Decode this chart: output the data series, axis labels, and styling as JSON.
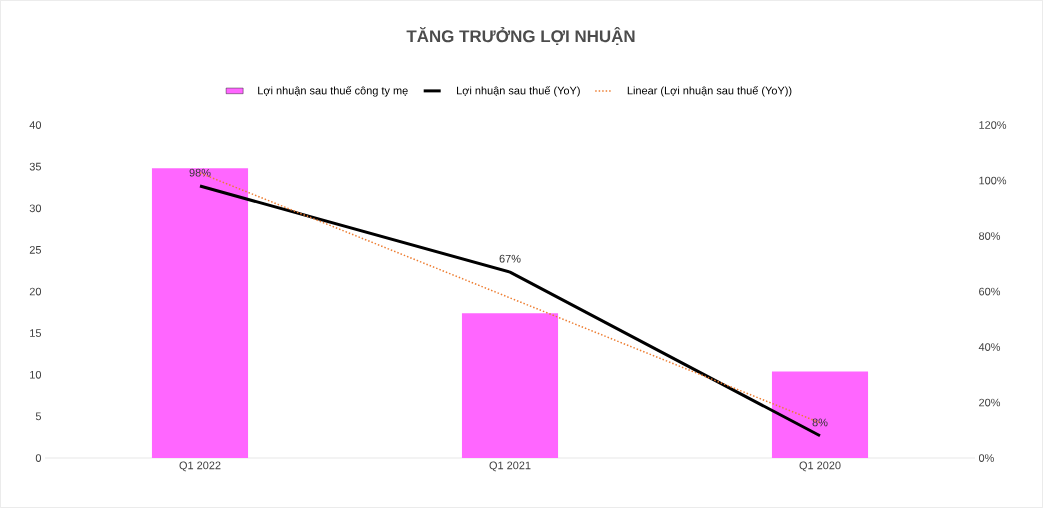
{
  "chart_data": {
    "type": "bar",
    "title": "TĂNG TRƯỞNG LỢI NHUẬN",
    "categories": [
      "Q1 2022",
      "Q1 2021",
      "Q1 2020"
    ],
    "series": [
      {
        "name": "Lợi nhuận sau thuế công ty mẹ",
        "color": "#ff66ff",
        "values": [
          34.8,
          17.4,
          10.4
        ]
      },
      {
        "name": "Lợi nhuận sau thuế (YoY)",
        "type": "line",
        "axis": "y2",
        "color": "#000000",
        "values": [
          98,
          67,
          8
        ],
        "value_labels": [
          "98%",
          "67%",
          "8%"
        ]
      },
      {
        "name": "Linear (Lợi nhuận sau thuế (YoY))",
        "type": "line",
        "axis": "y2",
        "color": "#ed7d31",
        "line_style": "dotted",
        "values": [
          102.7,
          57.7,
          12.7
        ]
      }
    ],
    "ylim": [
      0,
      40
    ],
    "yticks": [
      0,
      5,
      10,
      15,
      20,
      25,
      30,
      35,
      40
    ],
    "y2lim": [
      0,
      120
    ],
    "y2ticks": [
      {
        "value": 0,
        "label": "0%"
      },
      {
        "value": 20,
        "label": "20%"
      },
      {
        "value": 40,
        "label": "40%"
      },
      {
        "value": 60,
        "label": "60%"
      },
      {
        "value": 80,
        "label": "80%"
      },
      {
        "value": 100,
        "label": "100%"
      },
      {
        "value": 120,
        "label": "120%"
      }
    ],
    "legend": "top",
    "marker": "none",
    "grid": false
  }
}
